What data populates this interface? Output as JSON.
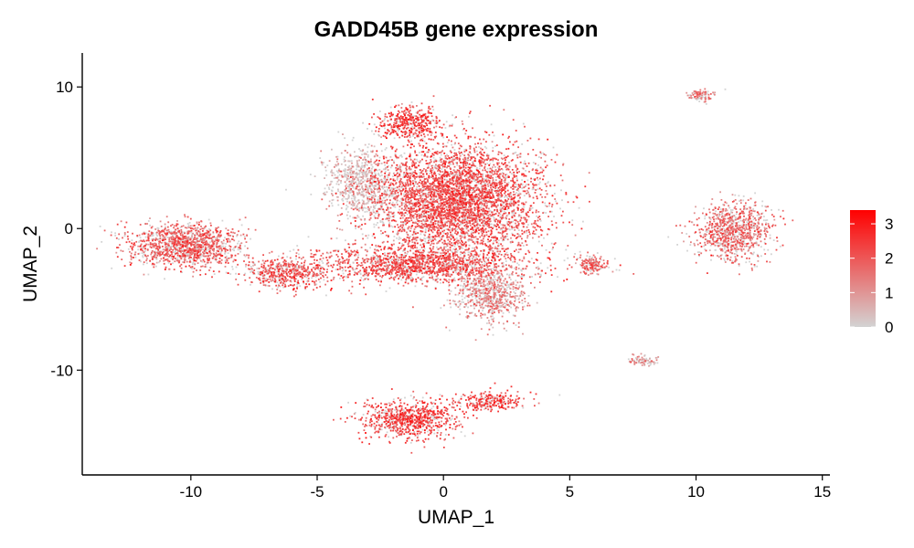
{
  "chart_data": {
    "type": "scatter",
    "title": "GADD45B gene expression",
    "xlabel": "UMAP_1",
    "ylabel": "UMAP_2",
    "xlim": [
      -14.3,
      15.3
    ],
    "ylim": [
      -17.4,
      12.4
    ],
    "x_ticks": [
      -10,
      -5,
      0,
      5,
      10,
      15
    ],
    "x_tick_labels": [
      "-10",
      "-5",
      "0",
      "5",
      "10",
      "15"
    ],
    "y_ticks": [
      -10,
      0,
      10
    ],
    "y_tick_labels": [
      "-10",
      "0",
      "10"
    ],
    "grid": false,
    "legend": {
      "placement": "right",
      "type": "colorbar",
      "min": 0,
      "max": 3.4,
      "ticks": [
        0,
        1,
        2,
        3
      ],
      "tick_labels": [
        "0",
        "1",
        "2",
        "3"
      ],
      "color_low": "#d3d3d3",
      "color_high": "#ff0000"
    },
    "clusters": [
      {
        "label": "central large cluster",
        "cx": 0.5,
        "cy": 2.0,
        "sx": 2.2,
        "sy": 2.7,
        "n": 4500,
        "mean_expr": 2.0
      },
      {
        "label": "upper central lobe",
        "cx": -1.3,
        "cy": 7.5,
        "sx": 0.8,
        "sy": 0.8,
        "n": 400,
        "mean_expr": 2.3
      },
      {
        "label": "left upper gray region",
        "cx": -3.2,
        "cy": 3.2,
        "sx": 0.9,
        "sy": 1.6,
        "n": 700,
        "mean_expr": 0.6
      },
      {
        "label": "central band",
        "cx": -1.0,
        "cy": -2.5,
        "sx": 2.8,
        "sy": 0.9,
        "n": 1500,
        "mean_expr": 2.0
      },
      {
        "label": "lower right lobe",
        "cx": 1.8,
        "cy": -4.7,
        "sx": 0.9,
        "sy": 1.3,
        "n": 700,
        "mean_expr": 1.2
      },
      {
        "label": "left cluster",
        "cx": -10.2,
        "cy": -1.2,
        "sx": 1.5,
        "sy": 1.0,
        "n": 1300,
        "mean_expr": 1.8
      },
      {
        "label": "left arm",
        "cx": -6.3,
        "cy": -3.2,
        "sx": 1.2,
        "sy": 0.7,
        "n": 500,
        "mean_expr": 1.9
      },
      {
        "label": "bottom cluster",
        "cx": -1.3,
        "cy": -13.5,
        "sx": 1.3,
        "sy": 0.9,
        "n": 800,
        "mean_expr": 2.2
      },
      {
        "label": "bottom extension",
        "cx": 1.8,
        "cy": -12.2,
        "sx": 0.9,
        "sy": 0.5,
        "n": 250,
        "mean_expr": 2.2
      },
      {
        "label": "right cluster",
        "cx": 11.5,
        "cy": -0.2,
        "sx": 1.0,
        "sy": 1.4,
        "n": 900,
        "mean_expr": 1.6
      },
      {
        "label": "small middle right cluster",
        "cx": 5.9,
        "cy": -2.5,
        "sx": 0.5,
        "sy": 0.5,
        "n": 160,
        "mean_expr": 1.8
      },
      {
        "label": "top right cluster",
        "cx": 10.2,
        "cy": 9.4,
        "sx": 0.35,
        "sy": 0.3,
        "n": 90,
        "mean_expr": 1.5
      },
      {
        "label": "small lower right cluster",
        "cx": 7.9,
        "cy": -9.3,
        "sx": 0.4,
        "sy": 0.3,
        "n": 80,
        "mean_expr": 1.0
      }
    ]
  }
}
